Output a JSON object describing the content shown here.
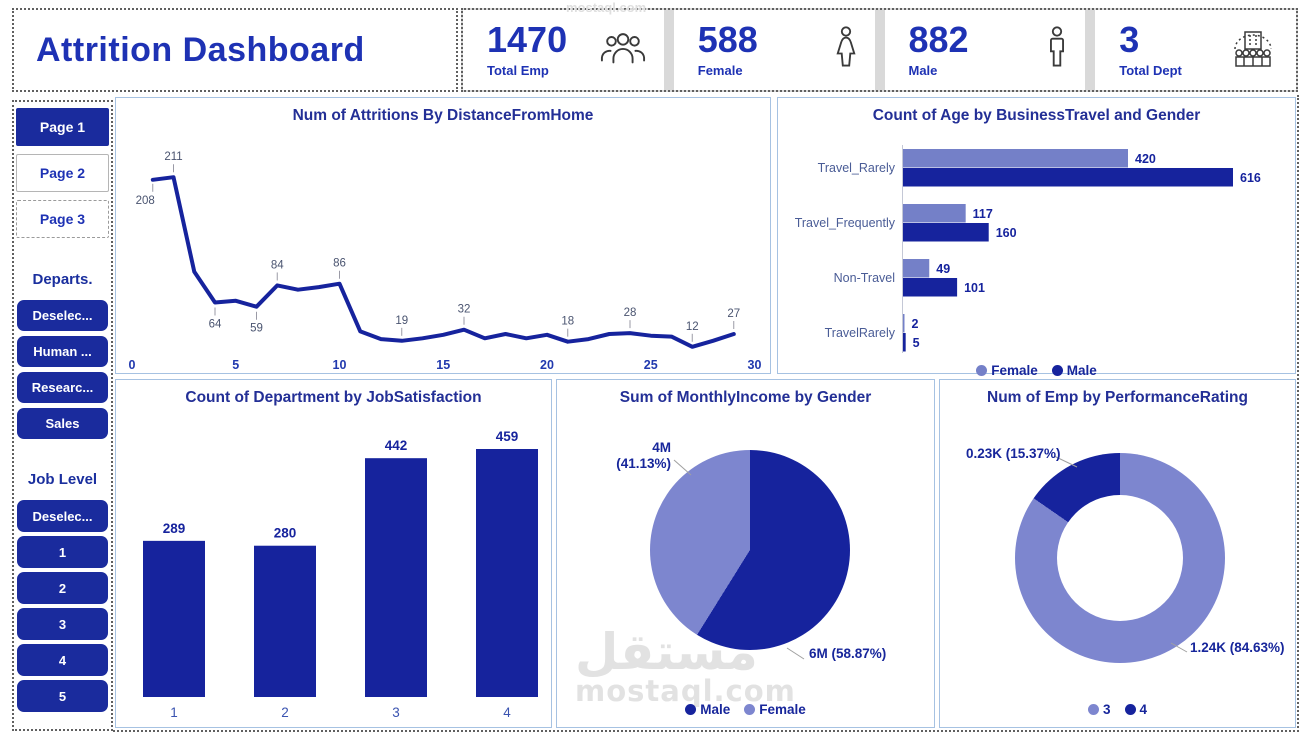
{
  "header": {
    "title": "Attrition Dashboard",
    "kpis": [
      {
        "value": "1470",
        "label": "Total Emp",
        "icon": "people-group-icon"
      },
      {
        "value": "588",
        "label": "Female",
        "icon": "female-icon"
      },
      {
        "value": "882",
        "label": "Male",
        "icon": "male-icon"
      },
      {
        "value": "3",
        "label": "Total Dept",
        "icon": "department-building-icon"
      }
    ]
  },
  "sidebar": {
    "pages": [
      {
        "label": "Page 1",
        "active": true
      },
      {
        "label": "Page 2",
        "active": false
      },
      {
        "label": "Page 3",
        "active": false
      }
    ],
    "departments": {
      "title": "Departs.",
      "items": [
        "Deselec...",
        "Human ...",
        "Researc...",
        "Sales"
      ]
    },
    "job_level": {
      "title": "Job Level",
      "items": [
        "Deselec...",
        "1",
        "2",
        "3",
        "4",
        "5"
      ]
    }
  },
  "watermark": {
    "arabic": "مستقل",
    "latin": "mostaql.com"
  },
  "colors": {
    "primary_dark": "#16239D",
    "primary_light": "#7480C8",
    "pie_light": "#7D86CF",
    "header_blue": "#1E32B4",
    "title_navy": "#232F96",
    "tick_blue": "#2139AE",
    "category_label": "#4A5C96",
    "point_label": "#4A5470",
    "leader_gray": "#A0A0A0"
  },
  "chart_data": [
    {
      "type": "line",
      "title": "Num of Attritions By DistanceFromHome",
      "xlabel": "DistanceFromHome",
      "ylabel": "Num of Attritions",
      "xlim": [
        0,
        30
      ],
      "xticks": [
        0,
        5,
        10,
        15,
        20,
        25,
        30
      ],
      "points": [
        {
          "x": 1,
          "v": 208,
          "label": "left"
        },
        {
          "x": 2,
          "v": 211,
          "label": "top"
        },
        {
          "x": 3,
          "v": 100
        },
        {
          "x": 4,
          "v": 64,
          "label": "bottom"
        },
        {
          "x": 5,
          "v": 66
        },
        {
          "x": 6,
          "v": 59,
          "label": "bottom"
        },
        {
          "x": 7,
          "v": 84,
          "label": "top"
        },
        {
          "x": 8,
          "v": 79
        },
        {
          "x": 9,
          "v": 82
        },
        {
          "x": 10,
          "v": 86,
          "label": "top"
        },
        {
          "x": 11,
          "v": 30
        },
        {
          "x": 12,
          "v": 21
        },
        {
          "x": 13,
          "v": 19,
          "label": "top"
        },
        {
          "x": 14,
          "v": 22
        },
        {
          "x": 15,
          "v": 26
        },
        {
          "x": 16,
          "v": 32,
          "label": "top"
        },
        {
          "x": 17,
          "v": 22
        },
        {
          "x": 18,
          "v": 27
        },
        {
          "x": 19,
          "v": 22
        },
        {
          "x": 20,
          "v": 26
        },
        {
          "x": 21,
          "v": 18,
          "label": "top"
        },
        {
          "x": 22,
          "v": 21
        },
        {
          "x": 23,
          "v": 27
        },
        {
          "x": 24,
          "v": 28,
          "label": "top"
        },
        {
          "x": 25,
          "v": 25
        },
        {
          "x": 26,
          "v": 24
        },
        {
          "x": 27,
          "v": 12,
          "label": "top"
        },
        {
          "x": 28,
          "v": 19
        },
        {
          "x": 29,
          "v": 27,
          "label": "top"
        }
      ]
    },
    {
      "type": "bar-horizontal-grouped",
      "title": "Count of Age by BusinessTravel and Gender",
      "categories": [
        "Travel_Rarely",
        "Travel_Frequently",
        "Non-Travel",
        "TravelRarely"
      ],
      "series": [
        {
          "name": "Female",
          "color_key": "primary_light",
          "values": [
            420,
            117,
            49,
            2
          ]
        },
        {
          "name": "Male",
          "color_key": "primary_dark",
          "values": [
            616,
            160,
            101,
            5
          ]
        }
      ],
      "legend": [
        {
          "name": "Female",
          "color_key": "primary_light"
        },
        {
          "name": "Male",
          "color_key": "primary_dark"
        }
      ]
    },
    {
      "type": "bar",
      "title": "Count of Department by JobSatisfaction",
      "categories": [
        "1",
        "2",
        "3",
        "4"
      ],
      "values": [
        289,
        280,
        442,
        459
      ]
    },
    {
      "type": "pie",
      "title": "Sum of MonthlyIncome by Gender",
      "slices": [
        {
          "name": "Male",
          "pct": 58.87,
          "label": "6M (58.87%)",
          "color_key": "primary_dark"
        },
        {
          "name": "Female",
          "pct": 41.13,
          "label_lines": [
            "4M",
            "(41.13%)"
          ],
          "color_key": "pie_light"
        }
      ],
      "legend": [
        {
          "name": "Male",
          "color_key": "primary_dark"
        },
        {
          "name": "Female",
          "color_key": "pie_light"
        }
      ]
    },
    {
      "type": "donut",
      "title": "Num of Emp by PerformanceRating",
      "slices": [
        {
          "name": "3",
          "pct": 84.63,
          "label": "1.24K (84.63%)",
          "color_key": "pie_light"
        },
        {
          "name": "4",
          "pct": 15.37,
          "label": "0.23K (15.37%)",
          "color_key": "primary_dark"
        }
      ],
      "legend": [
        {
          "name": "3",
          "color_key": "pie_light"
        },
        {
          "name": "4",
          "color_key": "primary_dark"
        }
      ]
    }
  ]
}
